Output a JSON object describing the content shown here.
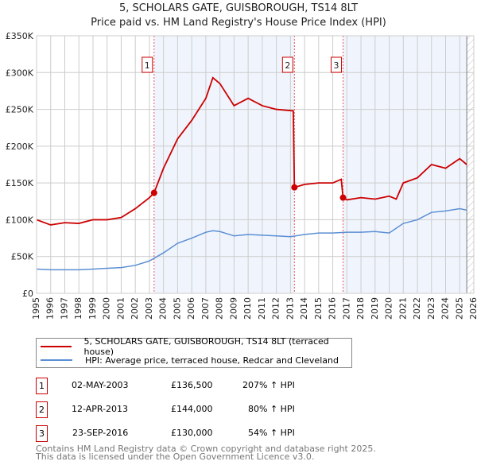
{
  "chart_data": {
    "type": "line",
    "title": "5, SCHOLARS GATE, GUISBOROUGH, TS14 8LT",
    "subtitle": "Price paid vs. HM Land Registry's House Price Index (HPI)",
    "xlim": [
      1995,
      2026
    ],
    "ylim": [
      0,
      350000
    ],
    "yticks": [
      {
        "v": 0,
        "label": "£0"
      },
      {
        "v": 50000,
        "label": "£50K"
      },
      {
        "v": 100000,
        "label": "£100K"
      },
      {
        "v": 150000,
        "label": "£150K"
      },
      {
        "v": 200000,
        "label": "£200K"
      },
      {
        "v": 250000,
        "label": "£250K"
      },
      {
        "v": 300000,
        "label": "£300K"
      },
      {
        "v": 350000,
        "label": "£350K"
      }
    ],
    "xticks": [
      "1995",
      "1996",
      "1997",
      "1998",
      "1999",
      "2000",
      "2001",
      "2002",
      "2003",
      "2004",
      "2005",
      "2006",
      "2007",
      "2008",
      "2009",
      "2010",
      "2011",
      "2012",
      "2013",
      "2014",
      "2015",
      "2016",
      "2017",
      "2018",
      "2019",
      "2020",
      "2021",
      "2022",
      "2023",
      "2024",
      "2025",
      "2026"
    ],
    "grid": true,
    "series": [
      {
        "name": "5, SCHOLARS GATE, GUISBOROUGH, TS14 8LT (terraced house)",
        "color": "#cc0000",
        "x": [
          1995,
          1996,
          1997,
          1998,
          1999,
          2000,
          2001,
          2002,
          2003,
          2003.33,
          2004,
          2005,
          2006,
          2007,
          2007.5,
          2008,
          2009,
          2010,
          2011,
          2012,
          2013.2,
          2013.28,
          2014,
          2015,
          2016,
          2016.6,
          2016.73,
          2017,
          2018,
          2019,
          2020,
          2020.5,
          2021,
          2022,
          2023,
          2024,
          2025,
          2025.5
        ],
        "y": [
          100000,
          93000,
          96000,
          95000,
          100000,
          100000,
          103000,
          115000,
          130000,
          136500,
          170000,
          210000,
          235000,
          265000,
          293000,
          285000,
          255000,
          265000,
          255000,
          250000,
          248000,
          144000,
          148000,
          150000,
          150000,
          155000,
          130000,
          127000,
          130000,
          128000,
          132000,
          128000,
          150000,
          157000,
          175000,
          170000,
          183000,
          175000
        ]
      },
      {
        "name": "HPI: Average price, terraced house, Redcar and Cleveland",
        "color": "#5b8fd4",
        "x": [
          1995,
          1996,
          1997,
          1998,
          1999,
          2000,
          2001,
          2002,
          2003,
          2004,
          2005,
          2006,
          2007,
          2007.5,
          2008,
          2009,
          2010,
          2011,
          2012,
          2013,
          2014,
          2015,
          2016,
          2017,
          2018,
          2019,
          2020,
          2021,
          2022,
          2023,
          2024,
          2025,
          2025.5
        ],
        "y": [
          33000,
          32000,
          32000,
          32000,
          33000,
          34000,
          35000,
          38000,
          44000,
          55000,
          68000,
          75000,
          83000,
          85000,
          84000,
          78000,
          80000,
          79000,
          78000,
          77000,
          80000,
          82000,
          82000,
          83000,
          83000,
          84000,
          82000,
          95000,
          100000,
          110000,
          112000,
          115000,
          113000
        ]
      }
    ],
    "sales": [
      {
        "id": "1",
        "date": "02-MAY-2003",
        "x": 2003.33,
        "price": "£136,500",
        "value": 136500,
        "hpi": "207% ↑ HPI"
      },
      {
        "id": "2",
        "date": "12-APR-2013",
        "x": 2013.28,
        "price": "£144,000",
        "value": 144000,
        "hpi": "80% ↑ HPI"
      },
      {
        "id": "3",
        "date": "23-SEP-2016",
        "x": 2016.73,
        "price": "£130,000",
        "value": 130000,
        "hpi": "54% ↑ HPI"
      }
    ],
    "hatch_from": 2025.5
  },
  "footer": [
    "Contains HM Land Registry data © Crown copyright and database right 2025.",
    "This data is licensed under the Open Government Licence v3.0."
  ]
}
